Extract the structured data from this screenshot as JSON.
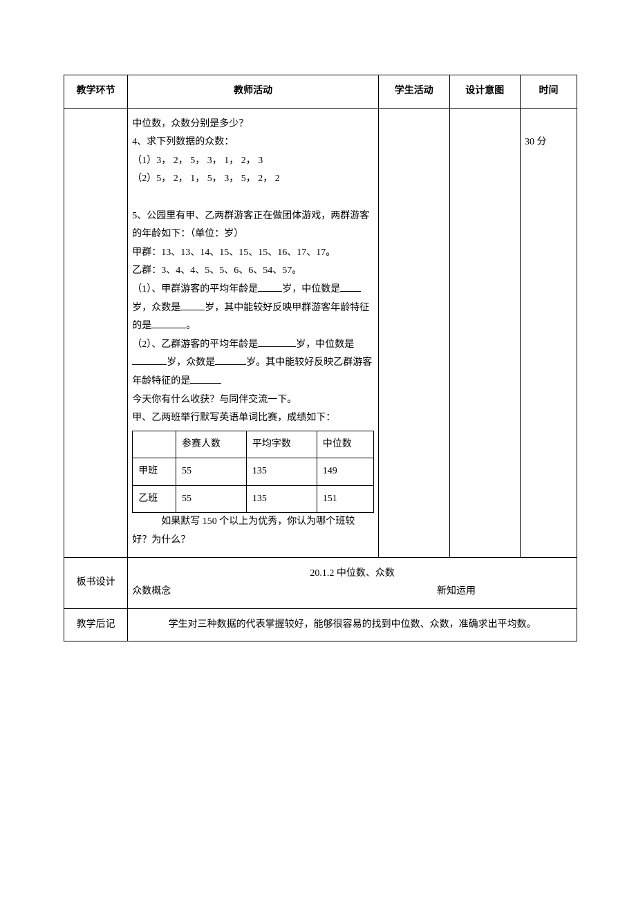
{
  "header": {
    "col1": "教学环节",
    "col2": "教师活动",
    "col3": "学生活动",
    "col4": "设计意图",
    "col5": "时间"
  },
  "time_cell": "30 分",
  "teacher_activity": {
    "intro": "中位数，众数分别是多少？",
    "q4_title": "4、求下列数据的众数：",
    "q4_line1": "（1）3，  2，  5，  3，  1，  2，  3",
    "q4_line2": "（2）5，  2，  1，  5，  3，  5，  2，  2",
    "q5_p1": "5、公园里有甲、乙两群游客正在做团体游戏，两群游客的年龄如下：（单位：岁）",
    "q5_jia": "甲群：13、13、14、15、15、15、16、17、17。",
    "q5_yi": "乙群：3、4、4、5、5、6、6、54、57。",
    "q5_sub1_a": "（1）、甲群游客的平均年龄是",
    "q5_sub1_b": "岁，中位数是",
    "q5_sub1_c": "岁，众数是",
    "q5_sub1_d": "岁，其中能较好反映甲群游客年龄特征的是",
    "q5_sub1_e": "。",
    "q5_sub2_a": "（2）、乙群游客的平均年龄是",
    "q5_sub2_b": "岁，中位数是",
    "q5_sub2_c": "岁，众数是",
    "q5_sub2_d": "岁。其中能较好反映乙群游客年龄特征的是",
    "today": "今天你有什么收获？与同伴交流一下。",
    "contest_intro": "甲、乙两班举行默写英语单词比赛，成绩如下：",
    "contest_table": {
      "columns": [
        "",
        "参赛人数",
        "平均字数",
        "中位数"
      ],
      "rows": [
        [
          "甲班",
          "55",
          "135",
          "149"
        ],
        [
          "乙班",
          "55",
          "135",
          "151"
        ]
      ]
    },
    "contest_q": "如果默写 150 个以上为优秀，你认为哪个班较好？为什么？"
  },
  "board_design": {
    "label": "板书设计",
    "title": "20.1.2 中位数、众数",
    "left": "众数概念",
    "right": "新知运用"
  },
  "postscript": {
    "label": "教学后记",
    "content": "学生对三种数据的代表掌握较好，能够很容易的找到中位数、众数，准确求出平均数。"
  }
}
